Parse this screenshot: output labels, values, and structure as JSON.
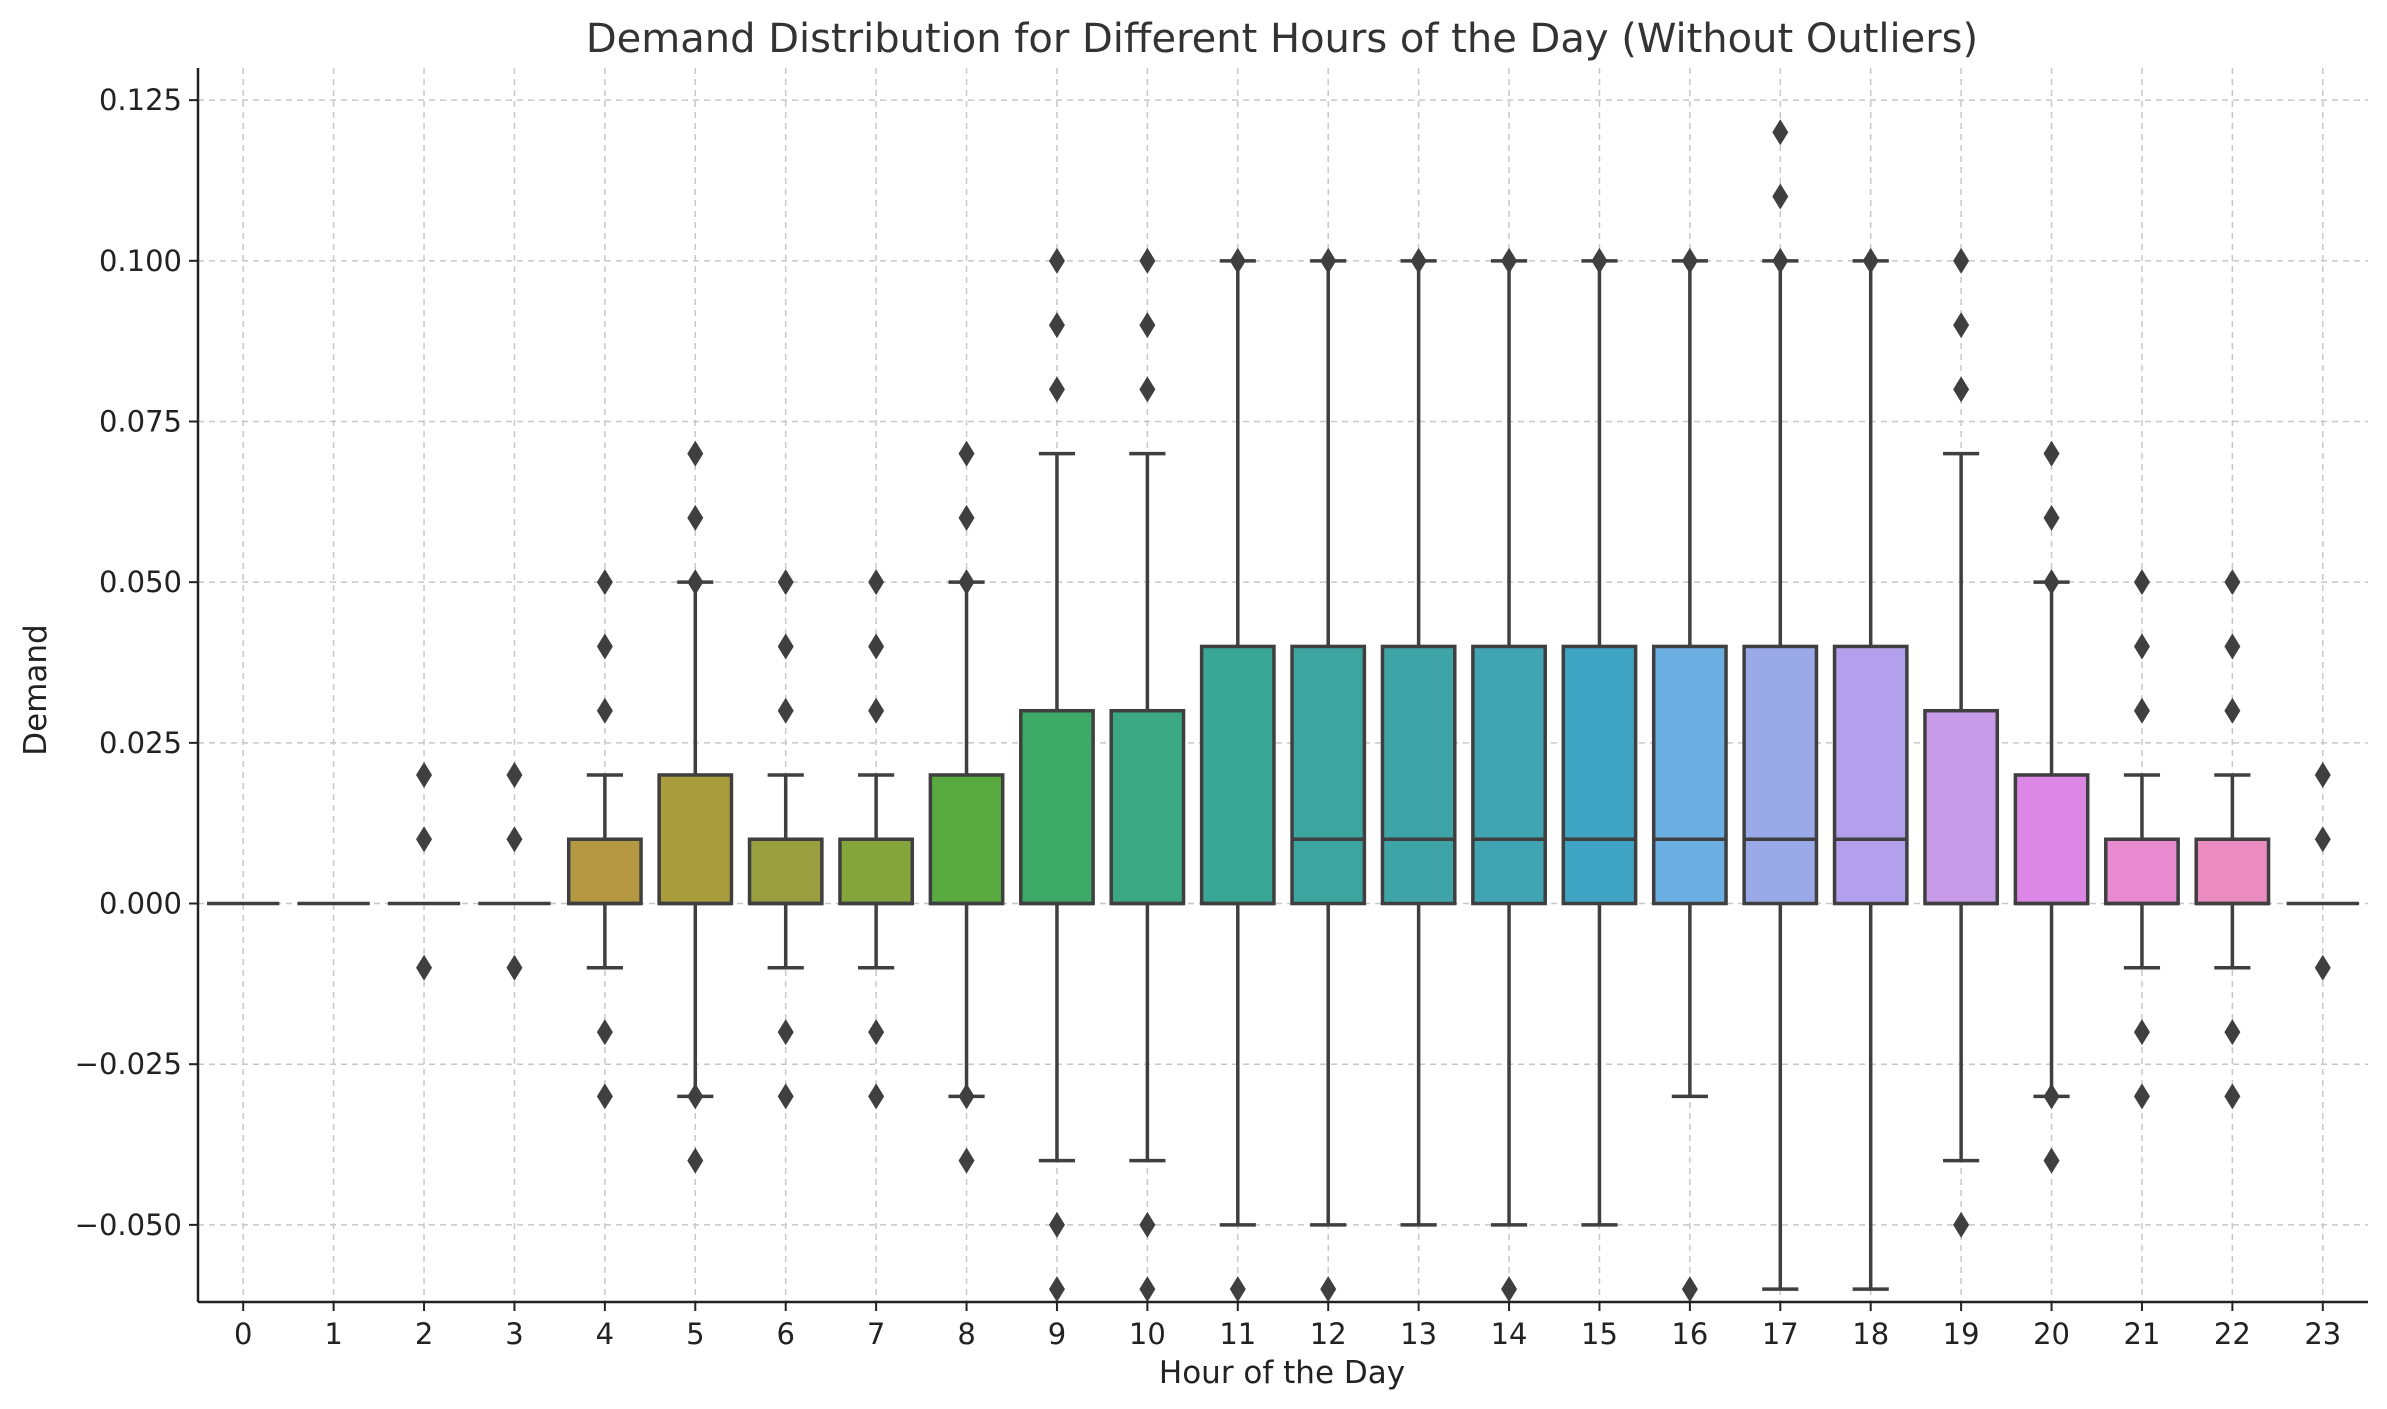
{
  "chart_data": {
    "type": "box",
    "title": "Demand Distribution for Different Hours of the Day (Without Outliers)",
    "xlabel": "Hour of the Day",
    "ylabel": "Demand",
    "ylim": [
      -0.062,
      0.13
    ],
    "yticks": [
      -0.05,
      -0.025,
      0.0,
      0.025,
      0.05,
      0.075,
      0.1,
      0.125
    ],
    "ytick_labels": [
      "−0.050",
      "−0.025",
      "0.000",
      "0.025",
      "0.050",
      "0.075",
      "0.100",
      "0.125"
    ],
    "grid": true,
    "categories": [
      "0",
      "1",
      "2",
      "3",
      "4",
      "5",
      "6",
      "7",
      "8",
      "9",
      "10",
      "11",
      "12",
      "13",
      "14",
      "15",
      "16",
      "17",
      "18",
      "19",
      "20",
      "21",
      "22",
      "23"
    ],
    "boxes": [
      {
        "hour": "0",
        "color": "#f47a7d",
        "q1": 0.0,
        "median": 0.0,
        "q3": 0.0,
        "whislo": 0.0,
        "whishi": 0.0,
        "fliers": []
      },
      {
        "hour": "1",
        "color": "#ee8147",
        "q1": 0.0,
        "median": 0.0,
        "q3": 0.0,
        "whislo": 0.0,
        "whishi": 0.0,
        "fliers": []
      },
      {
        "hour": "2",
        "color": "#d98b3a",
        "q1": 0.0,
        "median": 0.0,
        "q3": 0.0,
        "whislo": 0.0,
        "whishi": 0.0,
        "fliers": [
          0.02,
          0.01,
          -0.01
        ]
      },
      {
        "hour": "3",
        "color": "#c79333",
        "q1": 0.0,
        "median": 0.0,
        "q3": 0.0,
        "whislo": 0.0,
        "whishi": 0.0,
        "fliers": [
          0.02,
          0.01,
          -0.01
        ]
      },
      {
        "hour": "4",
        "color": "#b59942",
        "q1": 0.0,
        "median": 0.0,
        "q3": 0.01,
        "whislo": -0.01,
        "whishi": 0.02,
        "fliers": [
          0.05,
          0.04,
          0.03,
          -0.02,
          -0.03
        ]
      },
      {
        "hour": "5",
        "color": "#a89c3d",
        "q1": 0.0,
        "median": 0.0,
        "q3": 0.02,
        "whislo": -0.03,
        "whishi": 0.05,
        "fliers": [
          0.07,
          0.06,
          0.05,
          -0.03,
          -0.04
        ]
      },
      {
        "hour": "6",
        "color": "#999e3e",
        "q1": 0.0,
        "median": 0.0,
        "q3": 0.01,
        "whislo": -0.01,
        "whishi": 0.02,
        "fliers": [
          0.05,
          0.04,
          0.03,
          -0.02,
          -0.03
        ]
      },
      {
        "hour": "7",
        "color": "#84a43c",
        "q1": 0.0,
        "median": 0.0,
        "q3": 0.01,
        "whislo": -0.01,
        "whishi": 0.02,
        "fliers": [
          0.05,
          0.04,
          0.03,
          -0.02,
          -0.03
        ]
      },
      {
        "hour": "8",
        "color": "#58aa40",
        "q1": 0.0,
        "median": 0.0,
        "q3": 0.02,
        "whislo": -0.03,
        "whishi": 0.05,
        "fliers": [
          0.07,
          0.06,
          0.05,
          -0.03,
          -0.04
        ]
      },
      {
        "hour": "9",
        "color": "#3daa68",
        "q1": 0.0,
        "median": 0.0,
        "q3": 0.03,
        "whislo": -0.04,
        "whishi": 0.07,
        "fliers": [
          0.1,
          0.09,
          0.08,
          -0.05,
          -0.06
        ]
      },
      {
        "hour": "10",
        "color": "#3aa983",
        "q1": 0.0,
        "median": 0.0,
        "q3": 0.03,
        "whislo": -0.04,
        "whishi": 0.07,
        "fliers": [
          0.1,
          0.09,
          0.08,
          -0.05,
          -0.06
        ]
      },
      {
        "hour": "11",
        "color": "#3aa796",
        "q1": 0.0,
        "median": 0.0,
        "q3": 0.04,
        "whislo": -0.05,
        "whishi": 0.1,
        "fliers": [
          0.1,
          -0.06
        ]
      },
      {
        "hour": "12",
        "color": "#3ca59f",
        "q1": 0.0,
        "median": 0.01,
        "q3": 0.04,
        "whislo": -0.05,
        "whishi": 0.1,
        "fliers": [
          0.1,
          -0.06
        ]
      },
      {
        "hour": "13",
        "color": "#3ea4a8",
        "q1": 0.0,
        "median": 0.01,
        "q3": 0.04,
        "whislo": -0.05,
        "whishi": 0.1,
        "fliers": [
          0.1
        ]
      },
      {
        "hour": "14",
        "color": "#40a4b2",
        "q1": 0.0,
        "median": 0.01,
        "q3": 0.04,
        "whislo": -0.05,
        "whishi": 0.1,
        "fliers": [
          0.1,
          -0.06
        ]
      },
      {
        "hour": "15",
        "color": "#3fa4c4",
        "q1": 0.0,
        "median": 0.01,
        "q3": 0.04,
        "whislo": -0.05,
        "whishi": 0.1,
        "fliers": [
          0.1
        ]
      },
      {
        "hour": "16",
        "color": "#6aaee2",
        "q1": 0.0,
        "median": 0.01,
        "q3": 0.04,
        "whislo": -0.03,
        "whishi": 0.1,
        "fliers": [
          0.1,
          -0.06
        ]
      },
      {
        "hour": "17",
        "color": "#9aa9e8",
        "q1": 0.0,
        "median": 0.01,
        "q3": 0.04,
        "whislo": -0.06,
        "whishi": 0.1,
        "fliers": [
          0.12,
          0.11,
          0.1
        ]
      },
      {
        "hour": "18",
        "color": "#b2a0ec",
        "q1": 0.0,
        "median": 0.01,
        "q3": 0.04,
        "whislo": -0.06,
        "whishi": 0.1,
        "fliers": [
          0.1
        ]
      },
      {
        "hour": "19",
        "color": "#c89be8",
        "q1": 0.0,
        "median": 0.0,
        "q3": 0.03,
        "whislo": -0.04,
        "whishi": 0.07,
        "fliers": [
          0.1,
          0.09,
          0.08,
          -0.05
        ]
      },
      {
        "hour": "20",
        "color": "#dc87e6",
        "q1": 0.0,
        "median": 0.0,
        "q3": 0.02,
        "whislo": -0.03,
        "whishi": 0.05,
        "fliers": [
          0.07,
          0.06,
          0.05,
          -0.03,
          -0.04
        ]
      },
      {
        "hour": "21",
        "color": "#e78ad0",
        "q1": 0.0,
        "median": 0.0,
        "q3": 0.01,
        "whislo": -0.01,
        "whishi": 0.02,
        "fliers": [
          0.05,
          0.04,
          0.03,
          -0.02,
          -0.03
        ]
      },
      {
        "hour": "22",
        "color": "#ea8cc0",
        "q1": 0.0,
        "median": 0.0,
        "q3": 0.01,
        "whislo": -0.01,
        "whishi": 0.02,
        "fliers": [
          0.05,
          0.04,
          0.03,
          -0.02,
          -0.03
        ]
      },
      {
        "hour": "23",
        "color": "#f08aa6",
        "q1": 0.0,
        "median": 0.0,
        "q3": 0.0,
        "whislo": 0.0,
        "whishi": 0.0,
        "fliers": [
          0.02,
          0.01,
          -0.01
        ]
      }
    ]
  }
}
